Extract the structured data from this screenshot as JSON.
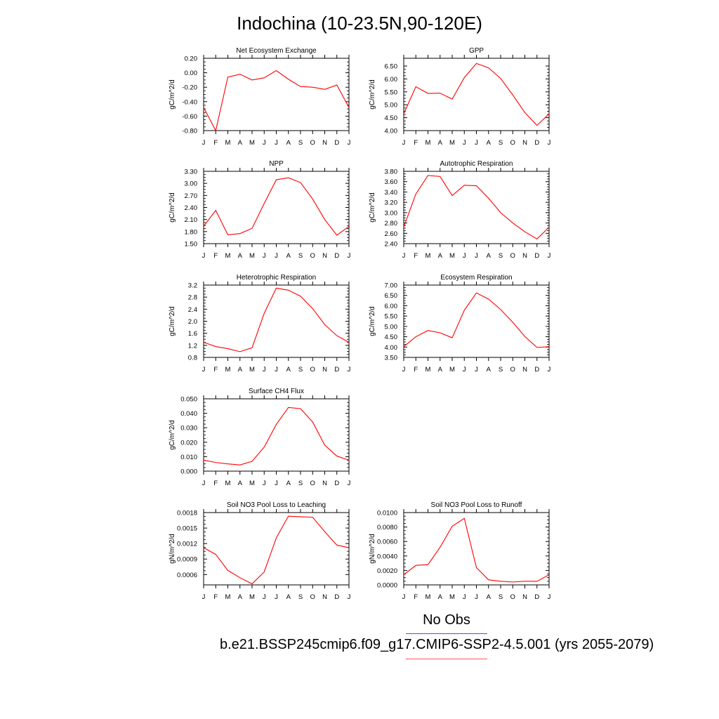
{
  "title": "Indochina (10-23.5N,90-120E)",
  "legend": {
    "obs_label": "No Obs",
    "case_label": "b.e21.BSSP245cmip6.f09_g17.CMIP6-SSP2-4.5.001 (yrs 2055-2079)",
    "obs_color": "#4f4fe6",
    "case_color": "#ff0000"
  },
  "chart_data": [
    {
      "type": "line",
      "title": "Net Ecosystem Exchange",
      "ylabel": "gC/m^2/d",
      "x": [
        "J",
        "F",
        "M",
        "A",
        "M",
        "J",
        "J",
        "A",
        "S",
        "O",
        "N",
        "D",
        "J"
      ],
      "ylim": [
        -0.8,
        0.2
      ],
      "yticks": [
        "0.20",
        "0.00",
        "-0.20",
        "-0.40",
        "-0.60",
        "-0.80"
      ],
      "series": [
        {
          "color": "#ff0000",
          "values": [
            -0.48,
            -0.8,
            -0.06,
            -0.02,
            -0.1,
            -0.07,
            0.03,
            -0.09,
            -0.19,
            -0.2,
            -0.23,
            -0.17,
            -0.48
          ]
        }
      ]
    },
    {
      "type": "line",
      "title": "GPP",
      "ylabel": "gC/m^2/d",
      "x": [
        "J",
        "F",
        "M",
        "A",
        "M",
        "J",
        "J",
        "A",
        "S",
        "O",
        "N",
        "D",
        "J"
      ],
      "ylim": [
        4.0,
        6.8
      ],
      "yticks": [
        "6.50",
        "6.00",
        "5.50",
        "5.00",
        "4.50",
        "4.00"
      ],
      "series": [
        {
          "color": "#ff0000",
          "values": [
            4.65,
            5.7,
            5.44,
            5.45,
            5.22,
            6.05,
            6.6,
            6.43,
            6.02,
            5.38,
            4.7,
            4.2,
            4.65
          ]
        }
      ]
    },
    {
      "type": "line",
      "title": "NPP",
      "ylabel": "gC/m^2/d",
      "x": [
        "J",
        "F",
        "M",
        "A",
        "M",
        "J",
        "J",
        "A",
        "S",
        "O",
        "N",
        "D",
        "J"
      ],
      "ylim": [
        1.5,
        3.3
      ],
      "yticks": [
        "3.30",
        "3.00",
        "2.70",
        "2.40",
        "2.10",
        "1.80",
        "1.50"
      ],
      "series": [
        {
          "color": "#ff0000",
          "values": [
            1.93,
            2.33,
            1.72,
            1.75,
            1.88,
            2.5,
            3.09,
            3.14,
            3.02,
            2.61,
            2.1,
            1.71,
            1.93
          ]
        }
      ]
    },
    {
      "type": "line",
      "title": "Autotrophic Respiration",
      "ylabel": "gC/m^2/d",
      "x": [
        "J",
        "F",
        "M",
        "A",
        "M",
        "J",
        "J",
        "A",
        "S",
        "O",
        "N",
        "D",
        "J"
      ],
      "ylim": [
        2.4,
        3.8
      ],
      "yticks": [
        "3.80",
        "3.60",
        "3.40",
        "3.20",
        "3.00",
        "2.80",
        "2.60",
        "2.40"
      ],
      "series": [
        {
          "color": "#ff0000",
          "values": [
            2.72,
            3.36,
            3.72,
            3.7,
            3.33,
            3.53,
            3.52,
            3.28,
            3.0,
            2.8,
            2.63,
            2.49,
            2.72
          ]
        }
      ]
    },
    {
      "type": "line",
      "title": "Heterotrophic Respiration",
      "ylabel": "gC/m^2/d",
      "x": [
        "J",
        "F",
        "M",
        "A",
        "M",
        "J",
        "J",
        "A",
        "S",
        "O",
        "N",
        "D",
        "J"
      ],
      "ylim": [
        0.8,
        3.2
      ],
      "yticks": [
        "3.2",
        "2.8",
        "2.4",
        "2.0",
        "1.6",
        "1.2",
        "0.8"
      ],
      "series": [
        {
          "color": "#ff0000",
          "values": [
            1.3,
            1.16,
            1.09,
            0.99,
            1.12,
            2.26,
            3.1,
            3.03,
            2.83,
            2.42,
            1.89,
            1.52,
            1.3
          ]
        }
      ]
    },
    {
      "type": "line",
      "title": "Ecosystem Respiration",
      "ylabel": "gC/m^2/d",
      "x": [
        "J",
        "F",
        "M",
        "A",
        "M",
        "J",
        "J",
        "A",
        "S",
        "O",
        "N",
        "D",
        "J"
      ],
      "ylim": [
        3.5,
        7.0
      ],
      "yticks": [
        "7.00",
        "6.50",
        "6.00",
        "5.50",
        "5.00",
        "4.50",
        "4.00",
        "3.50"
      ],
      "series": [
        {
          "color": "#ff0000",
          "values": [
            4.02,
            4.5,
            4.8,
            4.69,
            4.45,
            5.78,
            6.62,
            6.32,
            5.82,
            5.2,
            4.51,
            3.98,
            4.02
          ]
        }
      ]
    },
    {
      "type": "line",
      "title": "Surface CH4 Flux",
      "ylabel": "gC/m^2/d",
      "x": [
        "J",
        "F",
        "M",
        "A",
        "M",
        "J",
        "J",
        "A",
        "S",
        "O",
        "N",
        "D",
        "J"
      ],
      "ylim": [
        0.0,
        0.05
      ],
      "yticks": [
        "0.050",
        "0.040",
        "0.030",
        "0.020",
        "0.010",
        "0.000"
      ],
      "series": [
        {
          "color": "#ff0000",
          "values": [
            0.0076,
            0.006,
            0.005,
            0.0043,
            0.0068,
            0.0166,
            0.0323,
            0.044,
            0.0432,
            0.034,
            0.018,
            0.0104,
            0.0076
          ]
        }
      ]
    },
    {
      "type": "line",
      "title": "Soil NO3 Pool Loss to Leaching",
      "ylabel": "gN/m^2/d",
      "x": [
        "J",
        "F",
        "M",
        "A",
        "M",
        "J",
        "J",
        "A",
        "S",
        "O",
        "N",
        "D",
        "J"
      ],
      "ylim": [
        0.0004,
        0.0018
      ],
      "yticks": [
        "0.0018",
        "0.0015",
        "0.0012",
        "0.0009",
        "0.0006"
      ],
      "series": [
        {
          "color": "#ff0000",
          "values": [
            0.00112,
            0.00099,
            0.00068,
            0.00054,
            0.00042,
            0.00065,
            0.00131,
            0.00173,
            0.00172,
            0.00171,
            0.00143,
            0.00117,
            0.00112
          ]
        }
      ]
    },
    {
      "type": "line",
      "title": "Soil NO3 Pool Loss to Runoff",
      "ylabel": "gN/m^2/d",
      "x": [
        "J",
        "F",
        "M",
        "A",
        "M",
        "J",
        "J",
        "A",
        "S",
        "O",
        "N",
        "D",
        "J"
      ],
      "ylim": [
        0.0,
        0.01
      ],
      "yticks": [
        "0.0100",
        "0.0080",
        "0.0060",
        "0.0040",
        "0.0020",
        "0.0000"
      ],
      "series": [
        {
          "color": "#ff0000",
          "values": [
            0.0014,
            0.0027,
            0.0028,
            0.0052,
            0.0081,
            0.0092,
            0.0024,
            0.0007,
            0.0005,
            0.0004,
            0.0005,
            0.0005,
            0.0014
          ]
        }
      ]
    }
  ]
}
